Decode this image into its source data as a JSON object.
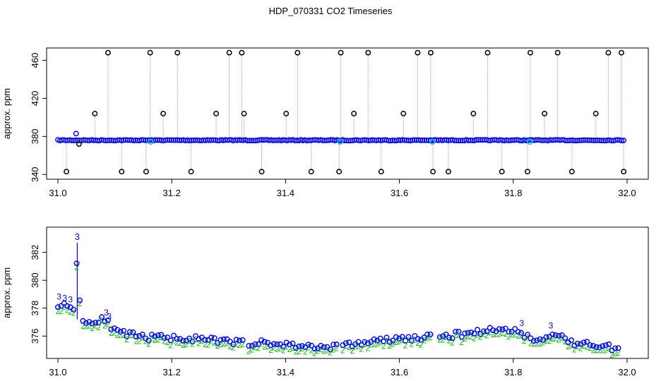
{
  "title": "HDP_070331  CO2 Timeseries",
  "colors": {
    "black": "#000000",
    "blue": "#0000ff",
    "green": "#00c000",
    "cyan": "#00cccc",
    "gray": "#999999"
  },
  "chart_data": [
    {
      "type": "scatter",
      "ylabel": "approx. ppm",
      "xlim": [
        31.0,
        32.0
      ],
      "ylim": [
        338,
        470
      ],
      "xticks": [
        31.0,
        31.2,
        31.4,
        31.6,
        31.8,
        32.0
      ],
      "yticks": [
        340,
        380,
        420,
        460
      ],
      "baseline_y": 376,
      "spike_x": [
        31.015,
        31.037,
        31.065,
        31.088,
        31.112,
        31.155,
        31.162,
        31.185,
        31.21,
        31.234,
        31.278,
        31.301,
        31.323,
        31.327,
        31.358,
        31.401,
        31.421,
        31.445,
        31.494,
        31.497,
        31.52,
        31.545,
        31.568,
        31.607,
        31.632,
        31.655,
        31.659,
        31.686,
        31.73,
        31.755,
        31.78,
        31.825,
        31.83,
        31.855,
        31.878,
        31.903,
        31.945,
        31.967,
        31.99,
        31.994
      ],
      "spike_y": [
        343,
        372,
        404,
        468,
        343,
        343,
        468,
        404,
        468,
        343,
        404,
        468,
        468,
        404,
        343,
        404,
        468,
        343,
        343,
        468,
        404,
        468,
        343,
        404,
        468,
        468,
        343,
        343,
        404,
        468,
        343,
        343,
        468,
        404,
        468,
        343,
        404,
        468,
        468,
        343
      ]
    },
    {
      "type": "scatter",
      "ylabel": "approx. ppm",
      "xlim": [
        31.0,
        32.0
      ],
      "ylim": [
        374.6,
        383.6
      ],
      "xticks": [
        31.0,
        31.2,
        31.4,
        31.6,
        31.8,
        32.0
      ],
      "yticks": [
        376,
        378,
        380,
        382
      ],
      "series": [
        {
          "marker": "3",
          "color": "#0000ff"
        },
        {
          "marker": "2",
          "color": "#00c000"
        }
      ],
      "x": [
        31.0,
        31.02,
        31.03,
        31.034,
        31.04,
        31.06,
        31.08,
        31.1,
        31.15,
        31.2,
        31.3,
        31.4,
        31.45,
        31.5,
        31.55,
        31.6,
        31.65,
        31.7,
        31.75,
        31.8,
        31.84,
        31.86,
        31.88,
        31.9,
        31.95,
        31.99
      ],
      "y": [
        378.3,
        378.1,
        378.0,
        382.5,
        377.2,
        376.9,
        377.4,
        376.3,
        375.9,
        375.9,
        375.6,
        375.4,
        375.2,
        375.3,
        375.6,
        375.8,
        375.9,
        376.1,
        376.4,
        376.5,
        375.6,
        375.9,
        376.2,
        375.5,
        375.4,
        375.0
      ]
    }
  ]
}
